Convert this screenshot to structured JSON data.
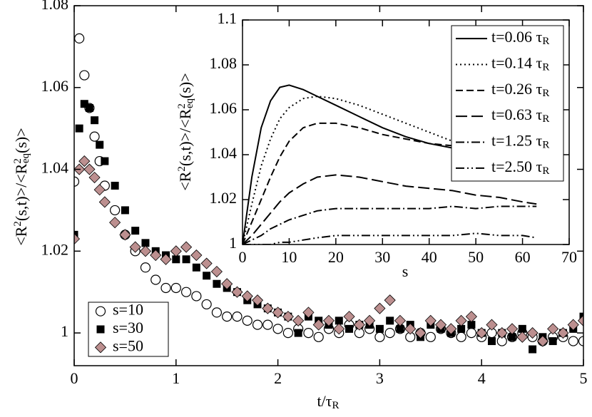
{
  "chart_data": [
    {
      "type": "scatter",
      "xlabel": "t/τR",
      "ylabel": "<R2(s,t)>/<R2eq(s)>",
      "xlim": [
        0,
        5
      ],
      "xticks": [
        0,
        1,
        2,
        3,
        4,
        5
      ],
      "ylim": [
        0.992,
        1.08
      ],
      "yticks": [
        1,
        1.02,
        1.04,
        1.06,
        1.08
      ],
      "legend": "lower left",
      "x": [
        0,
        0.05,
        0.1,
        0.15,
        0.2,
        0.25,
        0.3,
        0.4,
        0.5,
        0.6,
        0.7,
        0.8,
        0.9,
        1.0,
        1.1,
        1.2,
        1.3,
        1.4,
        1.5,
        1.6,
        1.7,
        1.8,
        1.9,
        2.0,
        2.1,
        2.2,
        2.3,
        2.4,
        2.5,
        2.6,
        2.7,
        2.8,
        2.9,
        3.0,
        3.1,
        3.2,
        3.3,
        3.4,
        3.5,
        3.6,
        3.7,
        3.8,
        3.9,
        4.0,
        4.1,
        4.2,
        4.3,
        4.4,
        4.5,
        4.6,
        4.7,
        4.8,
        4.9,
        5.0
      ],
      "series": [
        {
          "name": "s=10",
          "color": "#000000",
          "marker": "open-circle",
          "values": [
            1.037,
            1.072,
            1.063,
            1.055,
            1.048,
            1.042,
            1.036,
            1.03,
            1.024,
            1.02,
            1.016,
            1.013,
            1.011,
            1.011,
            1.01,
            1.009,
            1.007,
            1.005,
            1.004,
            1.004,
            1.003,
            1.002,
            1.002,
            1.001,
            1.0,
            1.001,
            1.0,
            0.999,
            1.001,
            1.0,
            1.002,
            1.0,
            1.001,
            0.999,
            1.0,
            1.001,
            0.999,
            1.0,
            0.999,
            1.001,
            1.0,
            0.999,
            1.0,
            0.999,
            1.0,
            0.998,
            0.999,
            1.0,
            0.999,
            0.998,
            0.999,
            0.999,
            0.998,
            0.998
          ]
        },
        {
          "name": "s=30",
          "color": "#000000",
          "marker": "square",
          "values": [
            1.024,
            1.05,
            1.056,
            1.055,
            1.052,
            1.046,
            1.042,
            1.036,
            1.03,
            1.025,
            1.022,
            1.02,
            1.019,
            1.018,
            1.018,
            1.016,
            1.014,
            1.012,
            1.011,
            1.01,
            1.008,
            1.007,
            1.006,
            1.005,
            1.004,
            1.0,
            1.004,
            1.003,
            1.002,
            1.003,
            1.001,
            1.002,
            1.002,
            1.001,
            1.003,
            1.001,
            1.002,
            0.999,
            1.002,
            1.001,
            1.0,
            1.001,
            1.002,
            1.0,
            0.998,
            1.0,
            0.999,
            1.001,
            0.996,
            0.999,
            0.998,
            1.0,
            1.001,
            1.004
          ]
        },
        {
          "name": "s=50",
          "color": "#bc8f8f",
          "marker": "diamond",
          "values": [
            1.023,
            1.04,
            1.042,
            1.04,
            1.038,
            1.035,
            1.032,
            1.027,
            1.024,
            1.021,
            1.02,
            1.019,
            1.018,
            1.02,
            1.021,
            1.019,
            1.017,
            1.015,
            1.012,
            1.01,
            1.009,
            1.008,
            1.006,
            1.005,
            1.004,
            1.003,
            1.005,
            1.002,
            1.003,
            1.001,
            1.004,
            1.002,
            1.003,
            1.006,
            1.008,
            1.003,
            1.001,
            1.0,
            1.003,
            1.002,
            1.001,
            1.003,
            1.004,
            1.0,
            1.002,
            1.0,
            1.001,
            0.999,
            1.0,
            0.998,
            1.001,
            1.0,
            1.002,
            1.003
          ]
        }
      ]
    },
    {
      "type": "line",
      "xlabel": "s",
      "ylabel": "<R2(s,t)>/<R2eq(s)>",
      "xlim": [
        0,
        70
      ],
      "xticks": [
        0,
        10,
        20,
        30,
        40,
        50,
        60,
        70
      ],
      "ylim": [
        1,
        1.1
      ],
      "yticks": [
        1,
        1.02,
        1.04,
        1.06,
        1.08,
        1.1
      ],
      "legend": "upper right",
      "x": [
        0,
        2,
        4,
        6,
        8,
        10,
        13,
        16,
        20,
        25,
        30,
        35,
        40,
        45,
        50,
        55,
        60,
        63
      ],
      "series": [
        {
          "name": "t=0.06 τR",
          "color": "#000000",
          "dash": "none",
          "values": [
            1.0,
            1.03,
            1.052,
            1.064,
            1.07,
            1.071,
            1.069,
            1.066,
            1.062,
            1.057,
            1.052,
            1.048,
            1.045,
            1.043,
            1.042,
            1.041,
            1.04,
            1.04
          ]
        },
        {
          "name": "t=0.14 τR",
          "color": "#000000",
          "dash": "2 4",
          "values": [
            1.0,
            1.018,
            1.035,
            1.047,
            1.056,
            1.061,
            1.065,
            1.066,
            1.065,
            1.062,
            1.058,
            1.054,
            1.05,
            1.046,
            1.043,
            1.041,
            1.04,
            1.039
          ]
        },
        {
          "name": "t=0.26 τR",
          "color": "#000000",
          "dash": "10 5",
          "values": [
            1.0,
            1.01,
            1.02,
            1.03,
            1.039,
            1.046,
            1.052,
            1.054,
            1.054,
            1.052,
            1.049,
            1.047,
            1.045,
            1.044,
            1.043,
            1.042,
            1.042,
            1.041
          ]
        },
        {
          "name": "t=0.63 τR",
          "color": "#000000",
          "dash": "16 6",
          "values": [
            1.0,
            1.004,
            1.009,
            1.014,
            1.019,
            1.023,
            1.027,
            1.03,
            1.031,
            1.03,
            1.028,
            1.026,
            1.025,
            1.024,
            1.022,
            1.021,
            1.019,
            1.018
          ]
        },
        {
          "name": "t=1.25 τR",
          "color": "#000000",
          "dash": "12 4 2 4",
          "values": [
            1.0,
            1.002,
            1.004,
            1.007,
            1.009,
            1.011,
            1.013,
            1.015,
            1.016,
            1.016,
            1.016,
            1.016,
            1.016,
            1.017,
            1.016,
            1.017,
            1.017,
            1.017
          ]
        },
        {
          "name": "t=2.50 τR",
          "color": "#000000",
          "dash": "12 4 2 4 2 4",
          "values": [
            1.0,
            1.0,
            1.0,
            1.0,
            1.001,
            1.001,
            1.002,
            1.003,
            1.004,
            1.004,
            1.004,
            1.004,
            1.004,
            1.004,
            1.005,
            1.004,
            1.004,
            1.003
          ]
        }
      ]
    }
  ]
}
